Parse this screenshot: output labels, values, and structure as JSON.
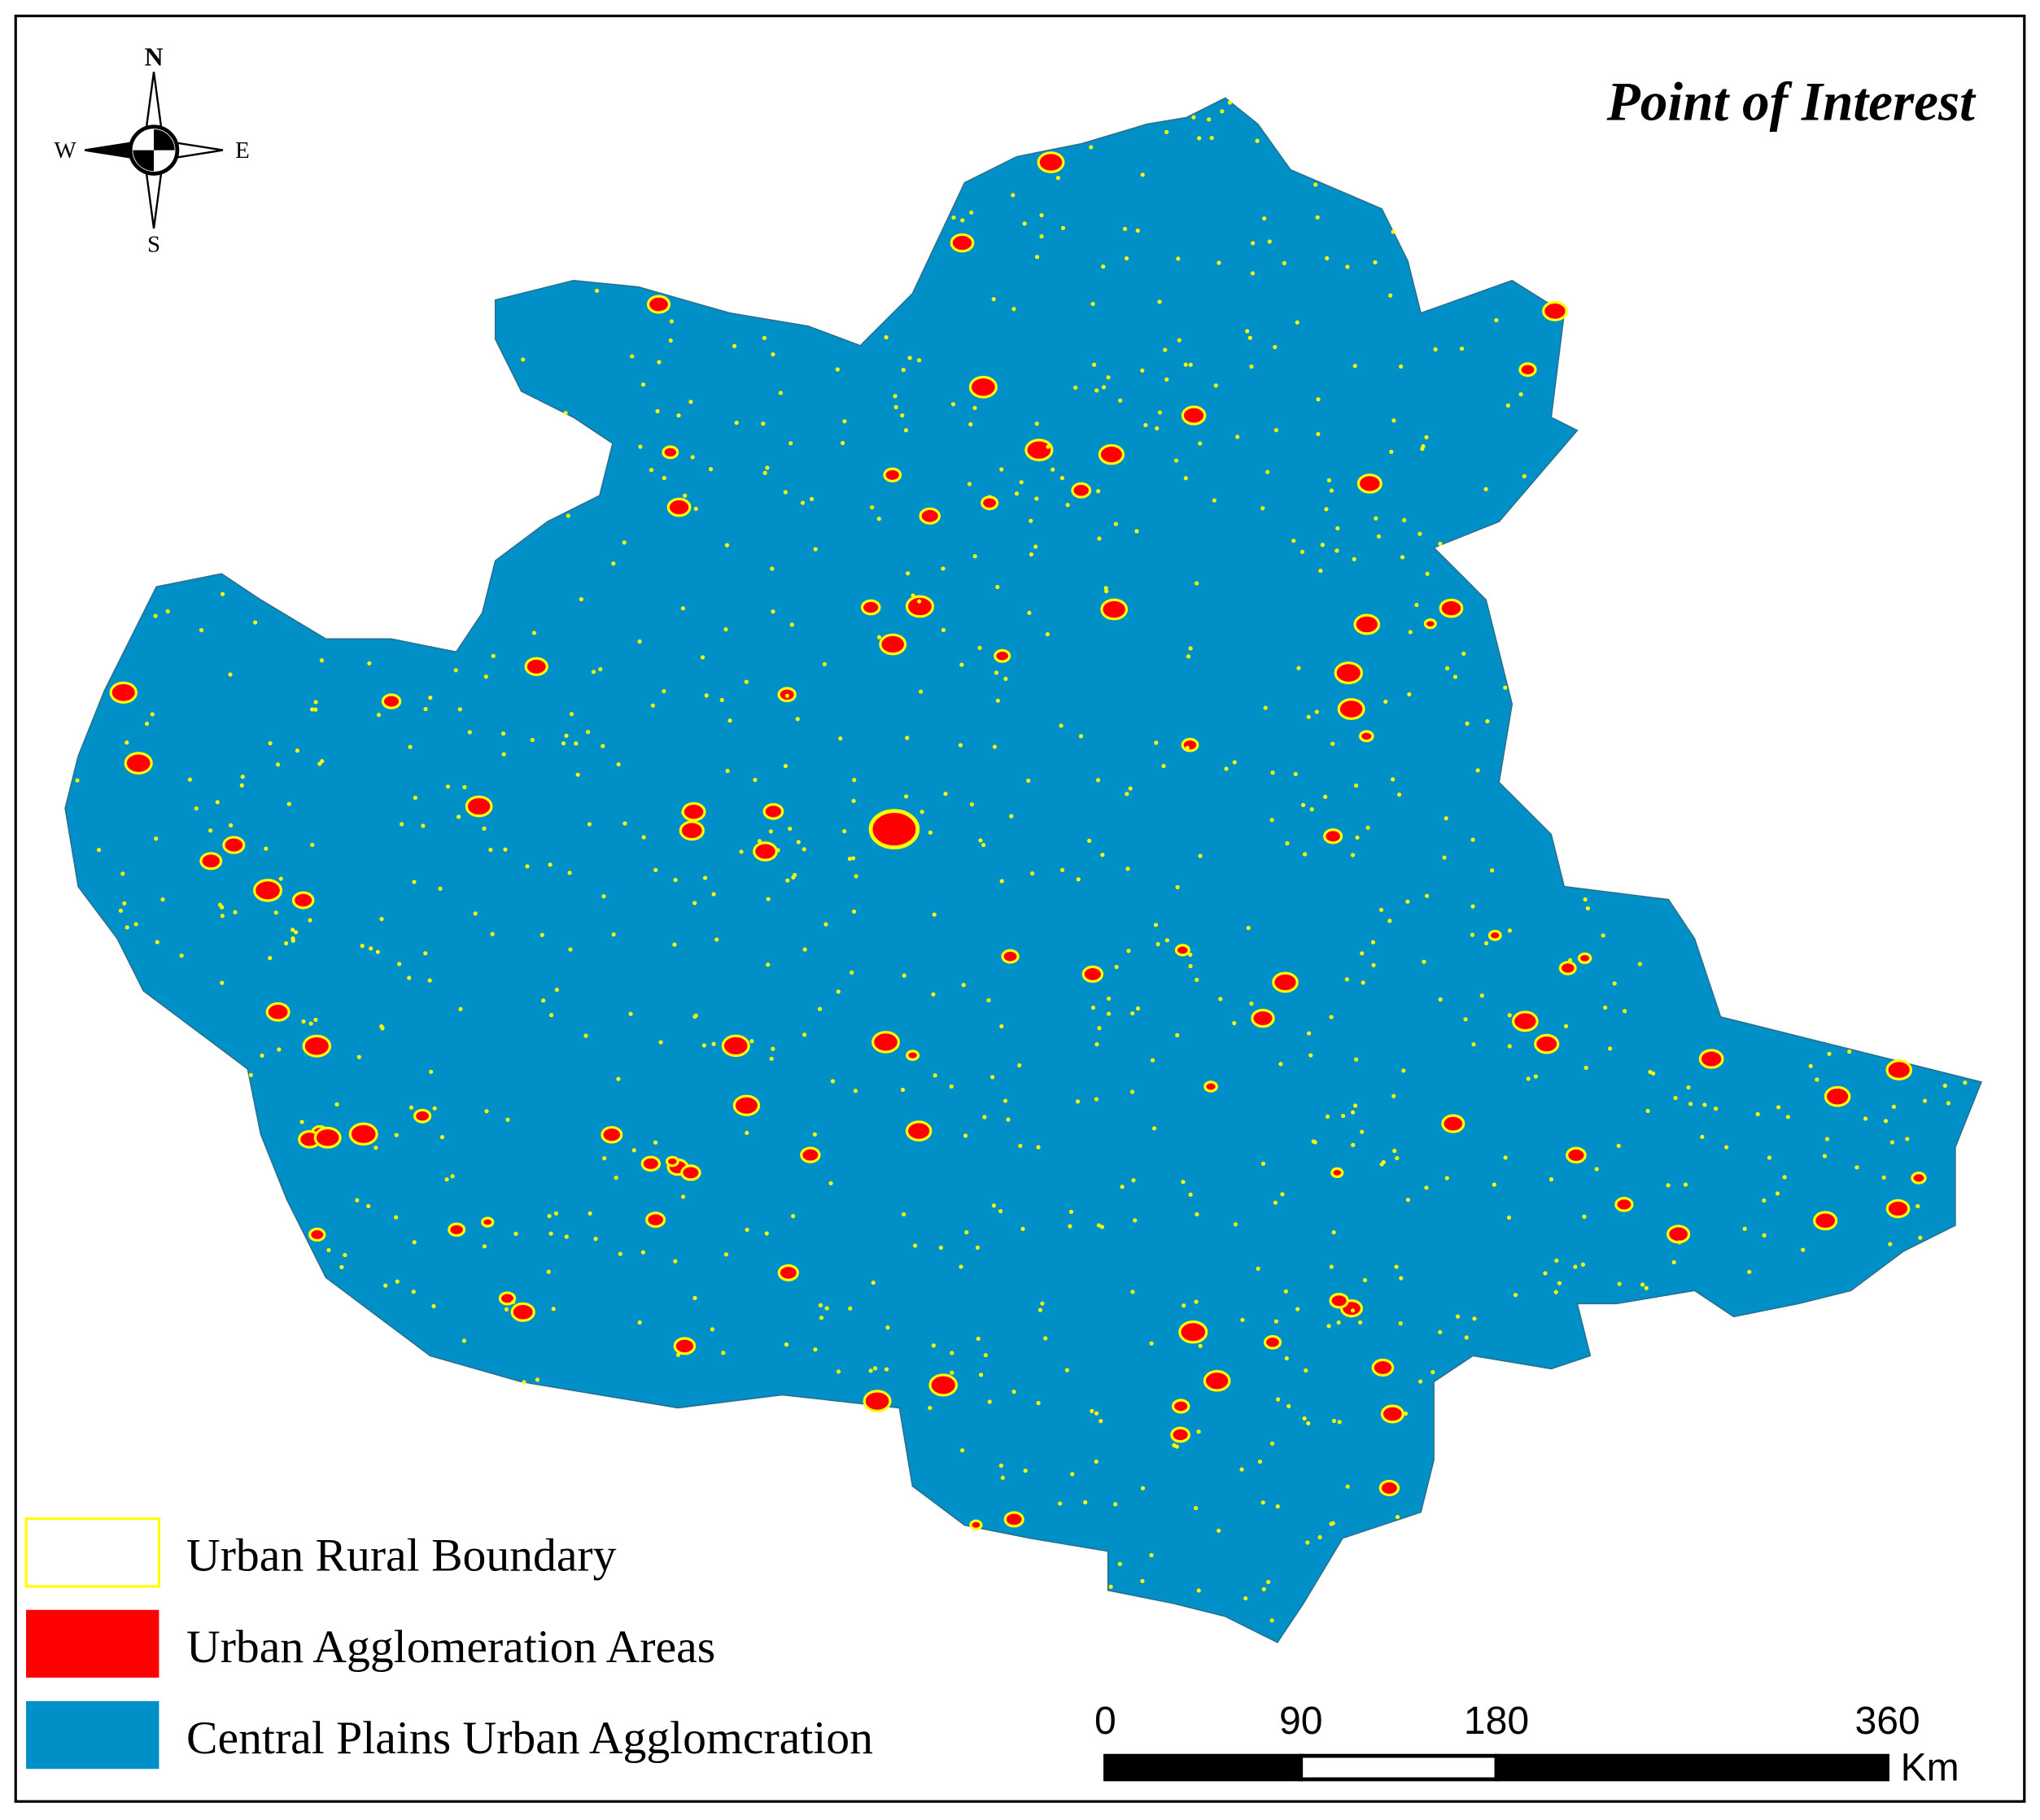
{
  "title": "Point of Interest",
  "compass": {
    "north": "N",
    "south": "S",
    "west": "W",
    "east": "E"
  },
  "legend": [
    {
      "label": "Urban Rural Boundary",
      "color": "#ffff00"
    },
    {
      "label": "Urban Agglomeration Areas",
      "color": "#ff0000"
    },
    {
      "label": "Central Plains Urban Agglomcration",
      "color": "#0090c8"
    }
  ],
  "scale_bar": {
    "ticks": [
      0,
      90,
      180,
      360
    ],
    "unit": "Km"
  }
}
